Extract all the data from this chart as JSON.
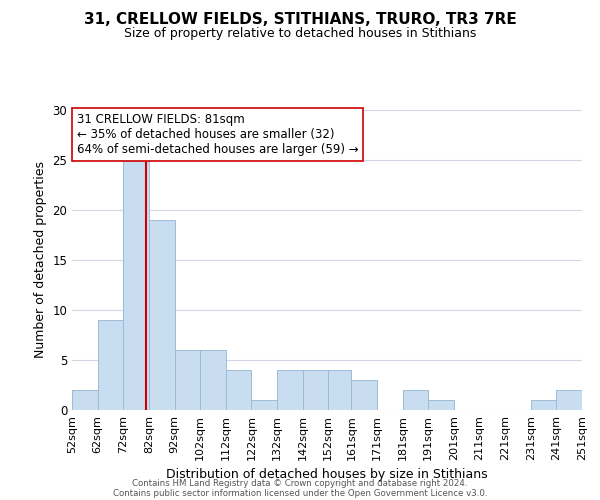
{
  "title": "31, CRELLOW FIELDS, STITHIANS, TRURO, TR3 7RE",
  "subtitle": "Size of property relative to detached houses in Stithians",
  "xlabel": "Distribution of detached houses by size in Stithians",
  "ylabel": "Number of detached properties",
  "bin_edges": [
    52,
    62,
    72,
    82,
    92,
    102,
    112,
    122,
    132,
    142,
    152,
    161,
    171,
    181,
    191,
    201,
    211,
    221,
    231,
    241,
    251
  ],
  "bar_heights": [
    2,
    9,
    25,
    19,
    6,
    6,
    4,
    1,
    4,
    4,
    4,
    3,
    0,
    2,
    1,
    0,
    0,
    0,
    1,
    2,
    0
  ],
  "bar_color": "#c9ddf0",
  "bar_edge_color": "#9bbcd8",
  "vline_x": 81,
  "vline_color": "#cc0000",
  "ylim": [
    0,
    30
  ],
  "yticks": [
    0,
    5,
    10,
    15,
    20,
    25,
    30
  ],
  "annotation_line1": "31 CRELLOW FIELDS: 81sqm",
  "annotation_line2": "← 35% of detached houses are smaller (32)",
  "annotation_line3": "64% of semi-detached houses are larger (59) →",
  "annotation_box_edgecolor": "#cc0000",
  "footer_line1": "Contains HM Land Registry data © Crown copyright and database right 2024.",
  "footer_line2": "Contains public sector information licensed under the Open Government Licence v3.0.",
  "tick_labels": [
    "52sqm",
    "62sqm",
    "72sqm",
    "82sqm",
    "92sqm",
    "102sqm",
    "112sqm",
    "122sqm",
    "132sqm",
    "142sqm",
    "152sqm",
    "161sqm",
    "171sqm",
    "181sqm",
    "191sqm",
    "201sqm",
    "211sqm",
    "221sqm",
    "231sqm",
    "241sqm",
    "251sqm"
  ]
}
